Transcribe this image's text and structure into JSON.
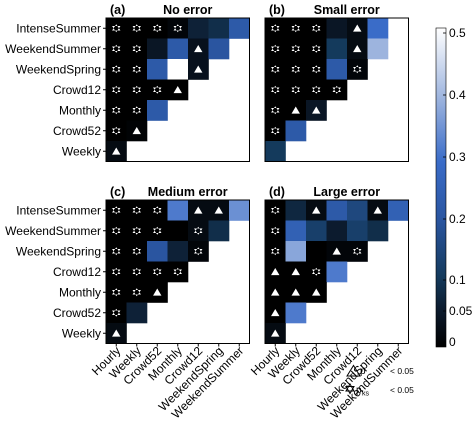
{
  "chart_data": [
    {
      "type": "heatmap",
      "panel_label": "(a)",
      "title": "No error",
      "rows": [
        "IntenseSummer",
        "WeekendSummer",
        "WeekendSpring",
        "Crowd12",
        "Monthly",
        "Crowd52",
        "Weekly"
      ],
      "columns": [
        "Hourly",
        "Weekly",
        "Crowd52",
        "Monthly",
        "Crowd12",
        "WeekendSpring",
        "WeekendSummer"
      ],
      "values": [
        [
          0,
          0,
          0,
          0.01,
          0.06,
          0.08,
          0.22
        ],
        [
          0,
          0,
          0.04,
          0.22,
          0.03,
          0.2,
          null
        ],
        [
          0,
          0,
          0.22,
          0.55,
          0.03,
          null,
          null
        ],
        [
          0,
          0,
          0,
          0,
          null,
          null,
          null
        ],
        [
          0,
          0,
          0.22,
          null,
          null,
          null,
          null
        ],
        [
          0,
          0.005,
          null,
          null,
          null,
          null,
          null
        ],
        [
          0.02,
          null,
          null,
          null,
          null,
          null,
          null
        ]
      ],
      "markers": [
        [
          "star",
          "star",
          "star",
          "star",
          "",
          "",
          ""
        ],
        [
          "star",
          "star",
          "",
          "",
          "triangle",
          "",
          null
        ],
        [
          "star",
          "star",
          "",
          "",
          "triangle",
          null,
          null
        ],
        [
          "star",
          "star",
          "star",
          "triangle",
          null,
          null,
          null
        ],
        [
          "star",
          "star",
          "",
          null,
          null,
          null,
          null
        ],
        [
          "star",
          "triangle",
          null,
          null,
          null,
          null,
          null
        ],
        [
          "triangle",
          null,
          null,
          null,
          null,
          null,
          null
        ]
      ]
    },
    {
      "type": "heatmap",
      "panel_label": "(b)",
      "title": "Small error",
      "rows": [
        "IntenseSummer",
        "WeekendSummer",
        "WeekendSpring",
        "Crowd12",
        "Monthly",
        "Crowd52",
        "Weekly"
      ],
      "columns": [
        "Hourly",
        "Weekly",
        "Crowd52",
        "Monthly",
        "Crowd12",
        "WeekendSpring",
        "WeekendSummer"
      ],
      "values": [
        [
          0,
          0,
          0,
          0.04,
          0.02,
          0.3,
          null
        ],
        [
          0,
          0,
          0,
          0.1,
          0.02,
          0.4,
          null
        ],
        [
          0,
          0,
          0,
          0.22,
          0.01,
          null,
          null
        ],
        [
          0,
          0,
          0,
          0,
          null,
          null,
          null
        ],
        [
          0,
          0,
          0.04,
          null,
          null,
          null,
          null
        ],
        [
          0,
          0.22,
          null,
          null,
          null,
          null,
          null
        ],
        [
          0.1,
          null,
          null,
          null,
          null,
          null,
          null
        ]
      ],
      "markers": [
        [
          "star",
          "star",
          "star",
          "",
          "triangle",
          "",
          null
        ],
        [
          "star",
          "star",
          "star",
          "",
          "triangle",
          "",
          null
        ],
        [
          "star",
          "star",
          "star",
          "",
          "star",
          null,
          null
        ],
        [
          "star",
          "star",
          "star",
          "star",
          null,
          null,
          null
        ],
        [
          "star",
          "triangle",
          "triangle",
          null,
          null,
          null,
          null
        ],
        [
          "star",
          "",
          null,
          null,
          null,
          null,
          null
        ],
        [
          "",
          null,
          null,
          null,
          null,
          null,
          null
        ]
      ]
    },
    {
      "type": "heatmap",
      "panel_label": "(c)",
      "title": "Medium error",
      "rows": [
        "IntenseSummer",
        "WeekendSummer",
        "WeekendSpring",
        "Crowd12",
        "Monthly",
        "Crowd52",
        "Weekly"
      ],
      "columns": [
        "Hourly",
        "Weekly",
        "Crowd52",
        "Monthly",
        "Crowd12",
        "WeekendSpring",
        "WeekendSummer"
      ],
      "values": [
        [
          0,
          0,
          0,
          0.32,
          0.02,
          0.02,
          0.35
        ],
        [
          0,
          0,
          0,
          0,
          0.02,
          0.08,
          null
        ],
        [
          0,
          0,
          0.2,
          0.06,
          0.01,
          null,
          null
        ],
        [
          0,
          0,
          0,
          0,
          null,
          null,
          null
        ],
        [
          0,
          0,
          0,
          null,
          null,
          null,
          null
        ],
        [
          0,
          0.06,
          null,
          null,
          null,
          null,
          null
        ],
        [
          0.02,
          null,
          null,
          null,
          null,
          null,
          null
        ]
      ],
      "markers": [
        [
          "star",
          "star",
          "star",
          "",
          "triangle",
          "triangle",
          ""
        ],
        [
          "star",
          "star",
          "star",
          "",
          "star",
          "",
          null
        ],
        [
          "star",
          "star",
          "",
          "",
          "star",
          null,
          null
        ],
        [
          "star",
          "star",
          "star",
          "star",
          null,
          null,
          null
        ],
        [
          "star",
          "star",
          "triangle",
          null,
          null,
          null,
          null
        ],
        [
          "star",
          "",
          null,
          null,
          null,
          null,
          null
        ],
        [
          "triangle",
          null,
          null,
          null,
          null,
          null,
          null
        ]
      ]
    },
    {
      "type": "heatmap",
      "panel_label": "(d)",
      "title": "Large error",
      "rows": [
        "IntenseSummer",
        "WeekendSummer",
        "WeekendSpring",
        "Crowd12",
        "Monthly",
        "Crowd52",
        "Weekly"
      ],
      "columns": [
        "Hourly",
        "Weekly",
        "Crowd52",
        "Monthly",
        "Crowd12",
        "WeekendSpring",
        "WeekendSummer"
      ],
      "values": [
        [
          0,
          0.07,
          0.02,
          0.22,
          0.15,
          0.02,
          0.25
        ],
        [
          0,
          0.25,
          0.12,
          0.05,
          0.12,
          0.08,
          null
        ],
        [
          0,
          0.38,
          0,
          0.01,
          0.01,
          null,
          null
        ],
        [
          0,
          0,
          0,
          0.32,
          null,
          null,
          null
        ],
        [
          0,
          0,
          0,
          null,
          null,
          null,
          null
        ],
        [
          0,
          0.32,
          null,
          null,
          null,
          null,
          null
        ],
        [
          0.02,
          null,
          null,
          null,
          null,
          null,
          null
        ]
      ],
      "markers": [
        [
          "star",
          "",
          "triangle",
          "",
          "",
          "triangle",
          ""
        ],
        [
          "star",
          "",
          "",
          "",
          "",
          "",
          null
        ],
        [
          "star",
          "",
          "",
          "triangle",
          "star",
          null,
          null
        ],
        [
          "triangle",
          "triangle",
          "star",
          "",
          null,
          null,
          null
        ],
        [
          "triangle",
          "triangle",
          "triangle",
          null,
          null,
          null,
          null
        ],
        [
          "triangle",
          "",
          null,
          null,
          null,
          null,
          null
        ],
        [
          "triangle",
          null,
          null,
          null,
          null,
          null,
          null
        ]
      ]
    }
  ],
  "colorbar": {
    "ticks": [
      "0.5",
      "0.4",
      "0.3",
      "0.2",
      "0.1",
      "0.05",
      "0"
    ],
    "colors": {
      "low": "#000000",
      "dark_blue": "#143a5c",
      "mid_blue": "#3a6cc8",
      "light_blue": "#9db4de",
      "high": "#ffffff"
    }
  },
  "legend": {
    "triangle_label": "p",
    "triangle_threshold": "< 0.05",
    "star_label": "p",
    "star_subscript": "ks",
    "star_threshold": "< 0.05"
  }
}
